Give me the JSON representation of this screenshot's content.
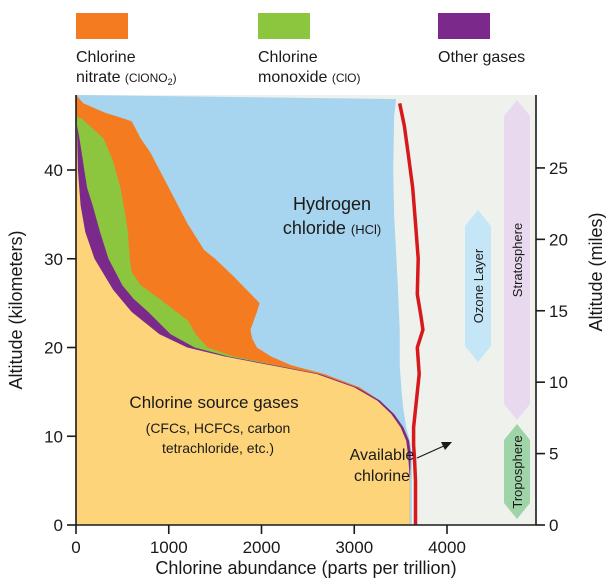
{
  "chart_data": {
    "type": "area",
    "xlabel": "Chlorine abundance (parts per trillion)",
    "ylabel": "Altitude (kilometers)",
    "y2label": "Altitude (miles)",
    "xlim": [
      0,
      4500
    ],
    "ylim": [
      0,
      48
    ],
    "x_ticks": [
      "0",
      "1000",
      "2000",
      "3000",
      "4000"
    ],
    "x_tick_values": [
      0,
      1000,
      2000,
      3000,
      4000
    ],
    "y_ticks": [
      "0",
      "10",
      "20",
      "30",
      "40"
    ],
    "y_tick_values": [
      0,
      10,
      20,
      30,
      40
    ],
    "y2_ticks": [
      "0",
      "5",
      "10",
      "15",
      "20",
      "25"
    ],
    "y2_tick_values": [
      0,
      5,
      10,
      15,
      20,
      25
    ],
    "legend_position": "top",
    "colors": {
      "source": "#fed47a",
      "other": "#7b2a8b",
      "clo": "#8cc63f",
      "clono2": "#f47b20",
      "hcl": "#a7d4ee",
      "background": "#eef1ec",
      "available": "#d7191c",
      "ozone": "#c5e6f7",
      "strat": "#e8d9ee",
      "trop": "#9fd3a8"
    },
    "legend": [
      {
        "key": "clono2",
        "line1": "Chlorine",
        "line2a": "nitrate ",
        "line2b": "(ClONO",
        "sub": "2",
        "line2c": ")"
      },
      {
        "key": "clo",
        "line1": "Chlorine",
        "line2a": "monoxide ",
        "line2b": "(ClO)",
        "sub": "",
        "line2c": ""
      },
      {
        "key": "other",
        "line1": "Other gases",
        "line2a": "",
        "line2b": "",
        "sub": "",
        "line2c": ""
      }
    ],
    "series": [
      {
        "name": "Chlorine source gases",
        "points": [
          [
            3600,
            0
          ],
          [
            3600,
            5
          ],
          [
            3580,
            8
          ],
          [
            3560,
            9.5
          ],
          [
            3500,
            11
          ],
          [
            3400,
            12.5
          ],
          [
            3250,
            14
          ],
          [
            3000,
            15.5
          ],
          [
            2600,
            17
          ],
          [
            2100,
            18
          ],
          [
            1600,
            19
          ],
          [
            1200,
            20
          ],
          [
            900,
            21.5
          ],
          [
            600,
            24
          ],
          [
            400,
            26.5
          ],
          [
            200,
            30
          ],
          [
            100,
            33
          ],
          [
            50,
            36
          ],
          [
            20,
            40
          ],
          [
            10,
            45
          ]
        ]
      },
      {
        "name": "Other gases",
        "points": [
          [
            3610,
            8
          ],
          [
            3590,
            9.5
          ],
          [
            3530,
            11
          ],
          [
            3430,
            12.5
          ],
          [
            3280,
            14
          ],
          [
            3030,
            15.5
          ],
          [
            2630,
            17
          ],
          [
            2140,
            18
          ],
          [
            1640,
            19
          ],
          [
            1280,
            20
          ],
          [
            1020,
            21.5
          ],
          [
            780,
            24
          ],
          [
            620,
            25.5
          ],
          [
            500,
            27
          ],
          [
            350,
            30
          ],
          [
            260,
            33
          ],
          [
            180,
            36
          ],
          [
            120,
            38
          ],
          [
            90,
            40
          ],
          [
            60,
            42
          ],
          [
            30,
            44
          ],
          [
            10,
            45
          ]
        ]
      },
      {
        "name": "Chlorine monoxide (ClO)",
        "points": [
          [
            3610,
            8
          ],
          [
            3590,
            9.5
          ],
          [
            3530,
            11
          ],
          [
            3430,
            12.5
          ],
          [
            3280,
            14
          ],
          [
            3030,
            15.5
          ],
          [
            2630,
            17
          ],
          [
            2160,
            18
          ],
          [
            1700,
            19
          ],
          [
            1420,
            20
          ],
          [
            1290,
            21.5
          ],
          [
            1210,
            23
          ],
          [
            900,
            25.5
          ],
          [
            700,
            27
          ],
          [
            600,
            28.5
          ],
          [
            580,
            30
          ],
          [
            560,
            33
          ],
          [
            530,
            35
          ],
          [
            480,
            38
          ],
          [
            400,
            41
          ],
          [
            300,
            43.5
          ],
          [
            200,
            44.5
          ],
          [
            60,
            45.8
          ],
          [
            10,
            46
          ]
        ]
      },
      {
        "name": "Chlorine nitrate (ClONO2)",
        "points": [
          [
            3610,
            8
          ],
          [
            3590,
            9.5
          ],
          [
            3530,
            11
          ],
          [
            3430,
            12.5
          ],
          [
            3280,
            14
          ],
          [
            3060,
            15.5
          ],
          [
            2680,
            17
          ],
          [
            2320,
            18
          ],
          [
            2100,
            19
          ],
          [
            1950,
            20
          ],
          [
            1900,
            21
          ],
          [
            1880,
            22
          ],
          [
            1950,
            24
          ],
          [
            1980,
            25
          ],
          [
            1700,
            28
          ],
          [
            1500,
            30
          ],
          [
            1380,
            31
          ],
          [
            1200,
            34
          ],
          [
            1050,
            37
          ],
          [
            900,
            40
          ],
          [
            800,
            42
          ],
          [
            700,
            43.5
          ],
          [
            600,
            45.5
          ],
          [
            300,
            46.5
          ],
          [
            150,
            47.2
          ],
          [
            80,
            47.5
          ]
        ]
      },
      {
        "name": "Hydrogen chloride (HCl)",
        "points": [
          [
            3620,
            8
          ],
          [
            3600,
            9.5
          ],
          [
            3560,
            11
          ],
          [
            3530,
            13
          ],
          [
            3510,
            15
          ],
          [
            3490,
            18
          ],
          [
            3490,
            22
          ],
          [
            3470,
            27
          ],
          [
            3430,
            35
          ],
          [
            3420,
            40
          ],
          [
            3430,
            46
          ],
          [
            3450,
            48
          ]
        ]
      },
      {
        "name": "Available chlorine",
        "points": [
          [
            3660,
            0
          ],
          [
            3660,
            5
          ],
          [
            3650,
            7.5
          ],
          [
            3640,
            9
          ],
          [
            3640,
            11
          ],
          [
            3670,
            14
          ],
          [
            3700,
            17
          ],
          [
            3680,
            20
          ],
          [
            3740,
            22
          ],
          [
            3720,
            23.5
          ],
          [
            3680,
            26
          ],
          [
            3690,
            30
          ],
          [
            3660,
            34
          ],
          [
            3630,
            38
          ],
          [
            3580,
            42
          ],
          [
            3540,
            45
          ],
          [
            3490,
            47.5
          ]
        ]
      }
    ],
    "labels": {
      "hcl_line1": "Hydrogen",
      "hcl_line2a": "chloride ",
      "hcl_line2b": "(HCl)",
      "src_line1": "Chlorine source gases",
      "src_line2": "(CFCs, HCFCs, carbon",
      "src_line3": "tetrachloride, etc.)",
      "avail_line1": "Available",
      "avail_line2": "chlorine",
      "ozone": "Ozone Layer",
      "strat": "Stratosphere",
      "trop": "Troposphere"
    }
  }
}
